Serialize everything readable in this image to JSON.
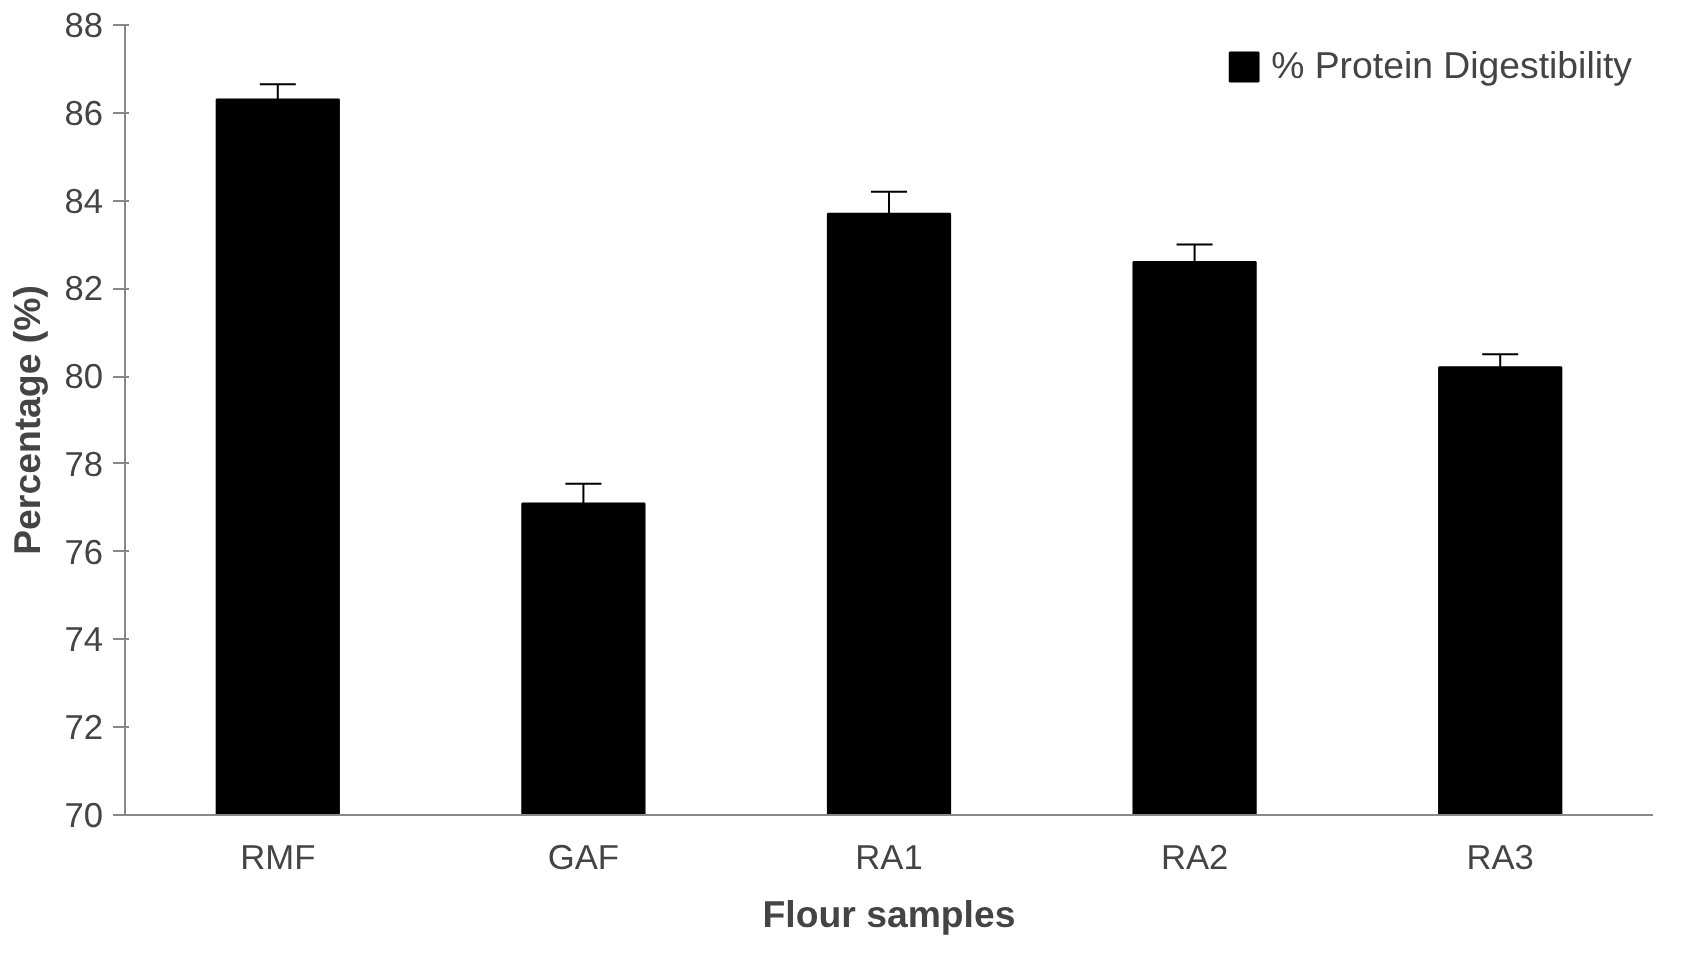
{
  "chart_data": {
    "type": "bar",
    "xlabel": "Flour samples",
    "ylabel": "Percentage (%)",
    "categories": [
      "RMF",
      "GAF",
      "RA1",
      "RA2",
      "RA3"
    ],
    "series": [
      {
        "name": "% Protein Digestibility",
        "color": "#000000",
        "values": [
          86.3,
          77.1,
          83.7,
          82.6,
          80.2
        ],
        "errors": [
          0.35,
          0.45,
          0.5,
          0.4,
          0.3
        ]
      }
    ],
    "ylim": [
      70,
      88
    ],
    "yticks": [
      70,
      72,
      74,
      76,
      78,
      80,
      82,
      84,
      86,
      88
    ],
    "grid": false,
    "legend": "top right"
  }
}
